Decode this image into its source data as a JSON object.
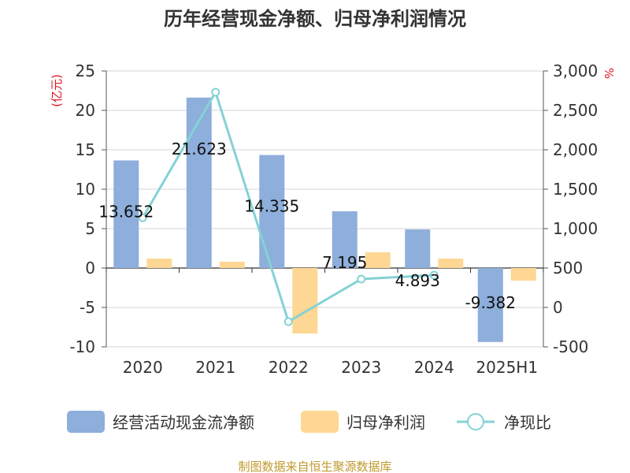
{
  "chart_data": {
    "type": "bar",
    "title": "历年经营现金净额、归母净利润情况",
    "categories": [
      "2020",
      "2021",
      "2022",
      "2023",
      "2024",
      "2025H1"
    ],
    "series": [
      {
        "name": "经营活动现金流净额",
        "type": "bar",
        "axis": "left",
        "color": "#8eaedb",
        "values": [
          13.652,
          21.623,
          14.335,
          7.195,
          4.893,
          -9.382
        ],
        "labels": [
          "13.652",
          "21.623",
          "14.335",
          "7.195",
          "4.893",
          "-9.382"
        ]
      },
      {
        "name": "归母净利润",
        "type": "bar",
        "axis": "left",
        "color": "#fdd793",
        "values": [
          1.2,
          0.8,
          -8.3,
          2.0,
          1.2,
          -1.6
        ]
      },
      {
        "name": "净现比",
        "type": "line",
        "axis": "right",
        "color": "#84d2d6",
        "values": [
          1138,
          2730,
          -180,
          360,
          410,
          null
        ]
      }
    ],
    "y_left": {
      "label": "(亿元)",
      "min": -10,
      "max": 25,
      "ticks": [
        "-10",
        "-5",
        "0",
        "5",
        "10",
        "15",
        "20",
        "25"
      ]
    },
    "y_right": {
      "label": "%",
      "min": -500,
      "max": 3000,
      "ticks": [
        "-500",
        "0",
        "500",
        "1,000",
        "1,500",
        "2,000",
        "2,500",
        "3,000"
      ]
    },
    "grid": true,
    "legend_position": "bottom"
  },
  "footer": {
    "source": "制图数据来自恒生聚源数据库"
  }
}
